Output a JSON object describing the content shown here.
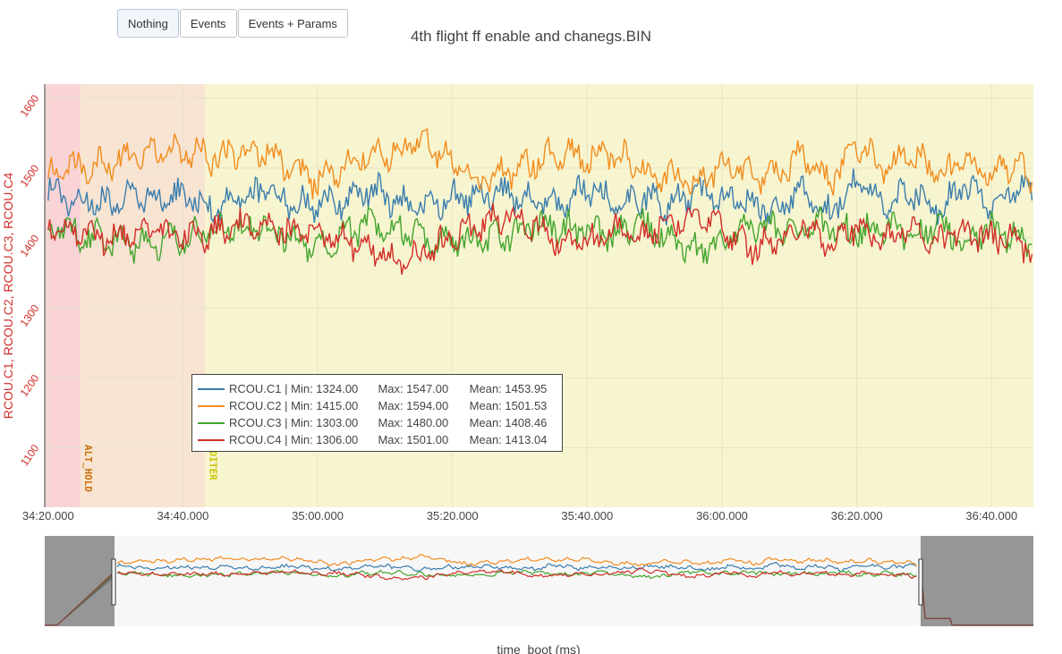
{
  "toolbar": {
    "buttons": [
      {
        "label": "Nothing",
        "active": true
      },
      {
        "label": "Events",
        "active": false
      },
      {
        "label": "Events + Params",
        "active": false
      }
    ]
  },
  "title": "4th flight ff enable and chanegs.BIN",
  "chart_data": {
    "type": "line",
    "title": "4th flight ff enable and chanegs.BIN",
    "ylabel": "RCOU.C1, RCOU.C2, RCOU.C3, RCOU.C4",
    "xlabel": "time_boot (ms)",
    "x_ticks": [
      "34:20.000",
      "34:40.000",
      "35:00.000",
      "35:20.000",
      "35:40.000",
      "36:00.000",
      "36:20.000",
      "36:40.000"
    ],
    "x_tick_seconds": [
      0,
      20,
      40,
      60,
      80,
      100,
      120,
      140
    ],
    "xlim_seconds_from_34_20": [
      -0.5,
      146.2
    ],
    "y_ticks": [
      1100,
      1200,
      1300,
      1400,
      1500,
      1600
    ],
    "ylim": [
      1015,
      1620
    ],
    "grid": true,
    "legend_position": "inside-lower-left",
    "modes": [
      {
        "label": "",
        "x_start": -0.5,
        "x_end": 4.8,
        "color": "#f9d3d6"
      },
      {
        "label": "ALT_HOLD",
        "x_start": 4.8,
        "x_end": 23.3,
        "color": "#f8e4d2",
        "label_color": "#c8700a"
      },
      {
        "label": "LOITER",
        "x_start": 23.3,
        "x_end": 146.2,
        "color": "#f7f5d0",
        "label_color": "#c9c600"
      }
    ],
    "series": [
      {
        "name": "RCOU.C1",
        "color": "#3a7dad",
        "min": "1324.00",
        "max": "1547.00",
        "mean": "1453.95",
        "x": [
          0,
          4,
          8,
          12,
          16,
          20,
          24,
          28,
          32,
          36,
          40,
          44,
          48,
          52,
          56,
          60,
          64,
          68,
          72,
          76,
          80,
          84,
          88,
          92,
          96,
          100,
          104,
          108,
          112,
          116,
          120,
          124,
          128,
          132,
          136,
          140,
          144,
          146
        ],
        "values": [
          1470,
          1455,
          1450,
          1460,
          1455,
          1460,
          1445,
          1455,
          1465,
          1450,
          1445,
          1455,
          1470,
          1450,
          1440,
          1460,
          1455,
          1465,
          1450,
          1445,
          1475,
          1450,
          1455,
          1445,
          1465,
          1460,
          1450,
          1435,
          1470,
          1435,
          1485,
          1445,
          1470,
          1440,
          1480,
          1450,
          1470,
          1465
        ]
      },
      {
        "name": "RCOU.C2",
        "color": "#f28c1e",
        "min": "1415.00",
        "max": "1594.00",
        "mean": "1501.53",
        "x": [
          0,
          4,
          8,
          12,
          16,
          20,
          24,
          28,
          32,
          36,
          40,
          44,
          48,
          52,
          56,
          60,
          64,
          68,
          72,
          76,
          80,
          84,
          88,
          92,
          96,
          100,
          104,
          108,
          112,
          116,
          120,
          124,
          128,
          132,
          136,
          140,
          144,
          146
        ],
        "values": [
          1490,
          1500,
          1505,
          1515,
          1520,
          1525,
          1515,
          1520,
          1525,
          1500,
          1480,
          1500,
          1525,
          1520,
          1545,
          1505,
          1480,
          1495,
          1505,
          1525,
          1515,
          1520,
          1500,
          1490,
          1475,
          1505,
          1495,
          1485,
          1520,
          1480,
          1530,
          1500,
          1520,
          1490,
          1510,
          1495,
          1505,
          1475
        ]
      },
      {
        "name": "RCOU.C3",
        "color": "#44a52e",
        "min": "1303.00",
        "max": "1480.00",
        "mean": "1408.46",
        "x": [
          0,
          4,
          8,
          12,
          16,
          20,
          24,
          28,
          32,
          36,
          40,
          44,
          48,
          52,
          56,
          60,
          64,
          68,
          72,
          76,
          80,
          84,
          88,
          92,
          96,
          100,
          104,
          108,
          112,
          116,
          120,
          124,
          128,
          132,
          136,
          140,
          144,
          146
        ],
        "values": [
          1415,
          1405,
          1400,
          1390,
          1395,
          1400,
          1410,
          1415,
          1420,
          1400,
          1385,
          1410,
          1420,
          1415,
          1400,
          1395,
          1395,
          1405,
          1420,
          1415,
          1410,
          1405,
          1420,
          1400,
          1380,
          1390,
          1420,
          1415,
          1410,
          1420,
          1405,
          1415,
          1400,
          1420,
          1395,
          1410,
          1400,
          1395
        ]
      },
      {
        "name": "RCOU.C4",
        "color": "#d22e28",
        "min": "1306.00",
        "max": "1501.00",
        "mean": "1413.04",
        "x": [
          0,
          4,
          8,
          12,
          16,
          20,
          24,
          28,
          32,
          36,
          40,
          44,
          48,
          52,
          56,
          60,
          64,
          68,
          72,
          76,
          80,
          84,
          88,
          92,
          96,
          100,
          104,
          108,
          112,
          116,
          120,
          124,
          128,
          132,
          136,
          140,
          144,
          146
        ],
        "values": [
          1420,
          1410,
          1400,
          1405,
          1410,
          1400,
          1405,
          1415,
          1420,
          1405,
          1410,
          1400,
          1380,
          1370,
          1380,
          1400,
          1420,
          1430,
          1420,
          1385,
          1395,
          1410,
          1400,
          1420,
          1435,
          1415,
          1385,
          1395,
          1420,
          1385,
          1420,
          1390,
          1420,
          1395,
          1410,
          1400,
          1395,
          1380
        ]
      }
    ]
  }
}
